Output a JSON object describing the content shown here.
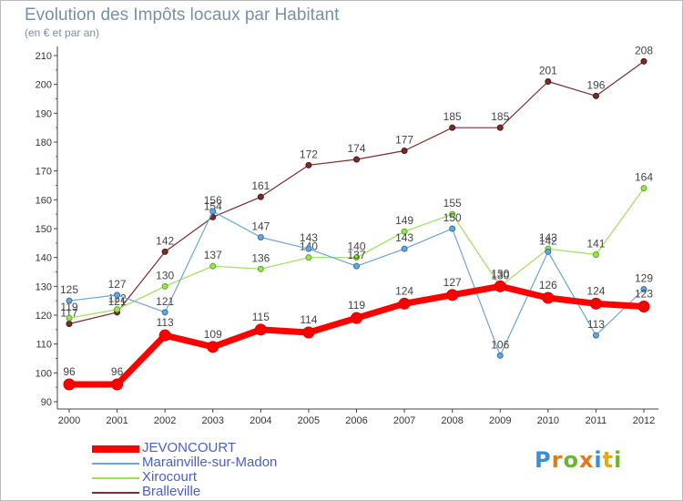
{
  "header": {
    "title": "Evolution des Impôts locaux par Habitant",
    "subtitle": "(en € et par an)"
  },
  "logo": {
    "text": "Proxiti",
    "letter_colors": [
      "#3a8fd8",
      "#e07a1c",
      "#6ab82e",
      "#e07a1c",
      "#3a8fd8",
      "#e0aa1c",
      "#6ab82e"
    ]
  },
  "chart_data": {
    "type": "line",
    "title": "Evolution des Impôts locaux par Habitant",
    "subtitle": "(en € et par an)",
    "x": [
      "2000",
      "2001",
      "2002",
      "2003",
      "2004",
      "2005",
      "2006",
      "2007",
      "2008",
      "2009",
      "2010",
      "2011",
      "2012"
    ],
    "ylim": [
      90,
      210
    ],
    "yticks": [
      90,
      100,
      110,
      120,
      130,
      140,
      150,
      160,
      170,
      180,
      190,
      200,
      210
    ],
    "grid": false,
    "legend_position": "bottom-left",
    "series": [
      {
        "name": "JEVONCOURT",
        "color": "#ff0000",
        "values": [
          96,
          96,
          113,
          109,
          115,
          114,
          119,
          124,
          127,
          130,
          126,
          124,
          123
        ]
      },
      {
        "name": "Marainville-sur-Madon",
        "color": "#6aa6d8",
        "values": [
          125,
          127,
          121,
          156,
          147,
          143,
          137,
          143,
          150,
          106,
          142,
          113,
          129
        ]
      },
      {
        "name": "Xirocourt",
        "color": "#9ee05a",
        "values": [
          119,
          122,
          130,
          137,
          136,
          140,
          140,
          149,
          155,
          130,
          143,
          141,
          164
        ]
      },
      {
        "name": "Bralleville",
        "color": "#7b2d2d",
        "values": [
          117,
          121,
          142,
          154,
          161,
          172,
          174,
          177,
          185,
          185,
          201,
          196,
          208
        ]
      }
    ]
  }
}
